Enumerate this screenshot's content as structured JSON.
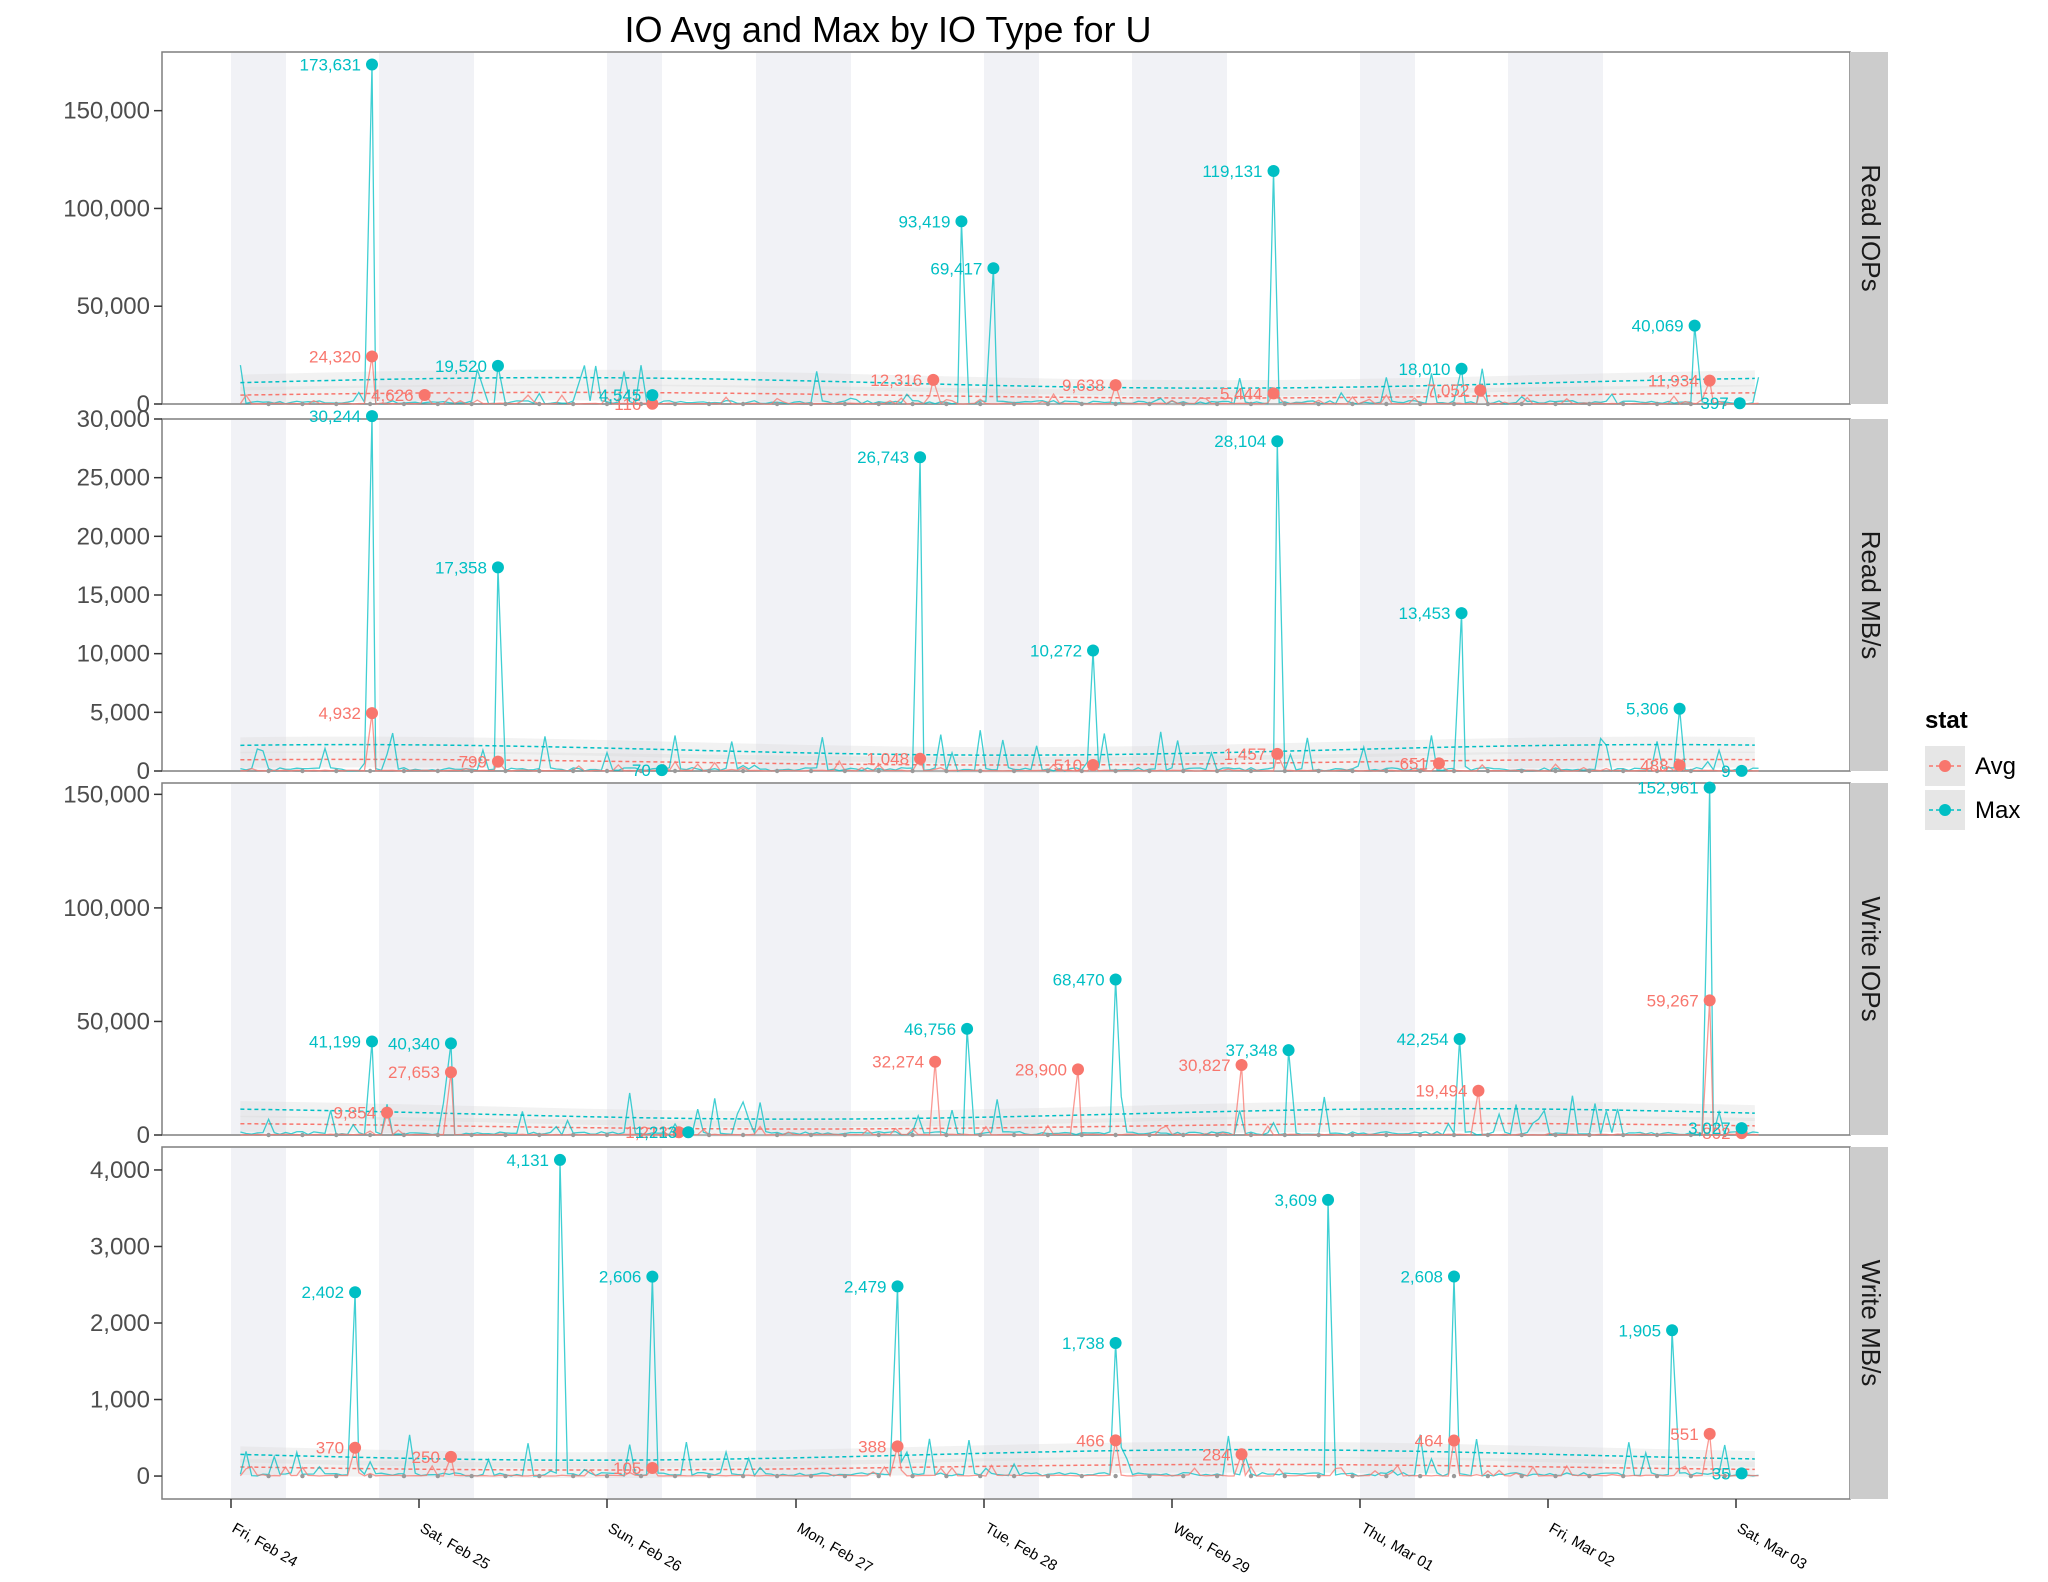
{
  "chart_data": {
    "type": "line",
    "title": "IO Avg and Max by IO Type for U",
    "x_type": "date",
    "x_tick_labels": [
      "Fri, Feb 24",
      "Sat, Feb 25",
      "Sun, Feb 26",
      "Mon, Feb 27",
      "Tue, Feb 28",
      "Wed, Feb 29",
      "Thu, Mar 01",
      "Fri, Mar 02",
      "Sat, Mar 03"
    ],
    "x_range": [
      "Fri, Feb 24",
      "Sat, Mar 03"
    ],
    "legend": {
      "title": "stat",
      "position": "right",
      "entries": [
        "Avg",
        "Max"
      ]
    },
    "colors": {
      "Avg": "#F8766D",
      "Max": "#00BFC4",
      "strip": "#cccccc",
      "panel_border": "#7f7f7f",
      "band": "#f1f2f6"
    },
    "grid": true,
    "facets": [
      {
        "name": "Read IOPs",
        "ylim": [
          0,
          180000
        ],
        "yticks": [
          0,
          50000,
          100000,
          150000
        ],
        "ytick_labels": [
          "0",
          "50,000",
          "100,000",
          "150,000"
        ],
        "series": [
          {
            "name": "Max",
            "points": [
              {
                "x": 0.75,
                "y": 173631,
                "label": "173,631"
              },
              {
                "x": 1.42,
                "y": 19520,
                "label": "19,520"
              },
              {
                "x": 2.24,
                "y": 4545,
                "label": "4,545"
              },
              {
                "x": 3.88,
                "y": 93419,
                "label": "93,419"
              },
              {
                "x": 4.05,
                "y": 69417,
                "label": "69,417"
              },
              {
                "x": 5.54,
                "y": 119131,
                "label": "119,131"
              },
              {
                "x": 6.54,
                "y": 18010,
                "label": "18,010"
              },
              {
                "x": 7.78,
                "y": 40069,
                "label": "40,069"
              },
              {
                "x": 8.02,
                "y": 397,
                "label": "397"
              }
            ]
          },
          {
            "name": "Avg",
            "points": [
              {
                "x": 0.75,
                "y": 24320,
                "label": "24,320"
              },
              {
                "x": 1.03,
                "y": 4626,
                "label": "4,626"
              },
              {
                "x": 2.24,
                "y": 116,
                "label": "116"
              },
              {
                "x": 3.73,
                "y": 12316,
                "label": "12,316"
              },
              {
                "x": 4.7,
                "y": 9638,
                "label": "9,638"
              },
              {
                "x": 5.54,
                "y": 5444,
                "label": "5,444"
              },
              {
                "x": 6.64,
                "y": 7052,
                "label": "7,052"
              },
              {
                "x": 7.86,
                "y": 11934,
                "label": "11,934"
              }
            ]
          }
        ]
      },
      {
        "name": "Read MB/s",
        "ylim": [
          0,
          30000
        ],
        "yticks": [
          0,
          5000,
          10000,
          15000,
          20000,
          25000,
          30000
        ],
        "ytick_labels": [
          "0",
          "5,000",
          "10,000",
          "15,000",
          "20,000",
          "25,000",
          "30,000"
        ],
        "series": [
          {
            "name": "Max",
            "points": [
              {
                "x": 0.75,
                "y": 30244,
                "label": "30,244"
              },
              {
                "x": 1.42,
                "y": 17358,
                "label": "17,358"
              },
              {
                "x": 2.29,
                "y": 70,
                "label": "70"
              },
              {
                "x": 3.66,
                "y": 26743,
                "label": "26,743"
              },
              {
                "x": 4.58,
                "y": 10272,
                "label": "10,272"
              },
              {
                "x": 5.56,
                "y": 28104,
                "label": "28,104"
              },
              {
                "x": 6.54,
                "y": 13453,
                "label": "13,453"
              },
              {
                "x": 7.7,
                "y": 5306,
                "label": "5,306"
              },
              {
                "x": 8.03,
                "y": 9,
                "label": "9"
              }
            ]
          },
          {
            "name": "Avg",
            "points": [
              {
                "x": 0.75,
                "y": 4932,
                "label": "4,932"
              },
              {
                "x": 1.42,
                "y": 799,
                "label": "799"
              },
              {
                "x": 3.66,
                "y": 1048,
                "label": "1,048"
              },
              {
                "x": 4.58,
                "y": 510,
                "label": "510"
              },
              {
                "x": 5.56,
                "y": 1457,
                "label": "1,457"
              },
              {
                "x": 6.42,
                "y": 651,
                "label": "651"
              },
              {
                "x": 7.7,
                "y": 488,
                "label": "488"
              }
            ]
          }
        ]
      },
      {
        "name": "Write IOPs",
        "ylim": [
          0,
          155000
        ],
        "yticks": [
          0,
          50000,
          100000,
          150000
        ],
        "ytick_labels": [
          "0",
          "50,000",
          "100,000",
          "150,000"
        ],
        "series": [
          {
            "name": "Max",
            "points": [
              {
                "x": 0.75,
                "y": 41199,
                "label": "41,199"
              },
              {
                "x": 1.17,
                "y": 40340,
                "label": "40,340"
              },
              {
                "x": 2.43,
                "y": 1213,
                "label": "1,213"
              },
              {
                "x": 3.91,
                "y": 46756,
                "label": "46,756"
              },
              {
                "x": 4.7,
                "y": 68470,
                "label": "68,470"
              },
              {
                "x": 5.62,
                "y": 37348,
                "label": "37,348"
              },
              {
                "x": 6.53,
                "y": 42254,
                "label": "42,254"
              },
              {
                "x": 7.86,
                "y": 152961,
                "label": "152,961"
              },
              {
                "x": 8.03,
                "y": 3027,
                "label": "3,027"
              }
            ]
          },
          {
            "name": "Avg",
            "points": [
              {
                "x": 0.83,
                "y": 9854,
                "label": "9,854"
              },
              {
                "x": 1.17,
                "y": 27653,
                "label": "27,653"
              },
              {
                "x": 2.38,
                "y": 1213,
                "label": "1,213"
              },
              {
                "x": 3.74,
                "y": 32274,
                "label": "32,274"
              },
              {
                "x": 4.5,
                "y": 28900,
                "label": "28,900"
              },
              {
                "x": 5.37,
                "y": 30827,
                "label": "30,827"
              },
              {
                "x": 6.63,
                "y": 19494,
                "label": "19,494"
              },
              {
                "x": 7.86,
                "y": 59267,
                "label": "59,267"
              },
              {
                "x": 8.03,
                "y": 802,
                "label": "802"
              }
            ]
          }
        ]
      },
      {
        "name": "Write MB/s",
        "ylim": [
          -300,
          4300
        ],
        "yticks": [
          0,
          1000,
          2000,
          3000,
          4000
        ],
        "ytick_labels": [
          "0",
          "1,000",
          "2,000",
          "3,000",
          "4,000"
        ],
        "series": [
          {
            "name": "Max",
            "points": [
              {
                "x": 0.66,
                "y": 2402,
                "label": "2,402"
              },
              {
                "x": 1.75,
                "y": 4131,
                "label": "4,131"
              },
              {
                "x": 2.24,
                "y": 2606,
                "label": "2,606"
              },
              {
                "x": 3.54,
                "y": 2479,
                "label": "2,479"
              },
              {
                "x": 4.7,
                "y": 1738,
                "label": "1,738"
              },
              {
                "x": 5.83,
                "y": 3609,
                "label": "3,609"
              },
              {
                "x": 6.5,
                "y": 2608,
                "label": "2,608"
              },
              {
                "x": 7.66,
                "y": 1905,
                "label": "1,905"
              },
              {
                "x": 8.03,
                "y": 35,
                "label": "35"
              }
            ]
          },
          {
            "name": "Avg",
            "points": [
              {
                "x": 0.66,
                "y": 370,
                "label": "370"
              },
              {
                "x": 1.17,
                "y": 250,
                "label": "250"
              },
              {
                "x": 2.24,
                "y": 105,
                "label": "105"
              },
              {
                "x": 3.54,
                "y": 388,
                "label": "388"
              },
              {
                "x": 4.7,
                "y": 466,
                "label": "466"
              },
              {
                "x": 5.37,
                "y": 284,
                "label": "284"
              },
              {
                "x": 6.5,
                "y": 464,
                "label": "464"
              },
              {
                "x": 7.86,
                "y": 551,
                "label": "551"
              }
            ]
          }
        ]
      }
    ]
  }
}
